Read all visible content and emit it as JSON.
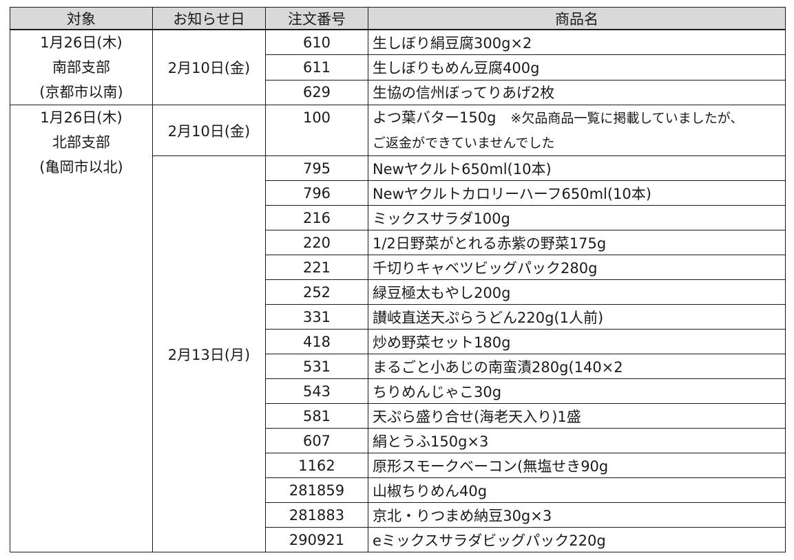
{
  "headers": {
    "target": "対象",
    "notice_date": "お知らせ日",
    "order_no": "注文番号",
    "product_name": "商品名"
  },
  "groups": [
    {
      "target": [
        "1月26日(木)",
        "南部支部",
        "(京都市以南)"
      ],
      "notices": [
        {
          "date": "2月10日(金)",
          "items": [
            {
              "order": "610",
              "name": "生しぼり絹豆腐300g×2"
            },
            {
              "order": "611",
              "name": "生しぼりもめん豆腐400g"
            },
            {
              "order": "629",
              "name": "生協の信州ぼってりあげ2枚"
            }
          ]
        }
      ]
    },
    {
      "target": [
        "1月26日(木)",
        "北部支部",
        "(亀岡市以北)"
      ],
      "notices": [
        {
          "date": "2月10日(金)",
          "items": [
            {
              "order": "100",
              "name": "よつ葉バター150g",
              "note": "※欠品商品一覧に掲載していましたが、",
              "note2": "ご返金ができていませんでした"
            }
          ]
        },
        {
          "date": "2月13日(月)",
          "items": [
            {
              "order": "795",
              "name": "Newヤクルト650ml(10本)"
            },
            {
              "order": "796",
              "name": "Newヤクルトカロリーハーフ650ml(10本)"
            },
            {
              "order": "216",
              "name": "ミックスサラダ100g"
            },
            {
              "order": "220",
              "name": "1/2日野菜がとれる赤紫の野菜175g"
            },
            {
              "order": "221",
              "name": "千切りキャベツビッグパック280g"
            },
            {
              "order": "252",
              "name": "緑豆極太もやし200g"
            },
            {
              "order": "331",
              "name": "讃岐直送天ぷらうどん220g(1人前)"
            },
            {
              "order": "418",
              "name": "炒め野菜セット180g"
            },
            {
              "order": "531",
              "name": "まるごと小あじの南蛮漬280g(140×2"
            },
            {
              "order": "543",
              "name": "ちりめんじゃこ30g"
            },
            {
              "order": "581",
              "name": "天ぷら盛り合せ(海老天入り)1盛"
            },
            {
              "order": "607",
              "name": "絹とうふ150g×3"
            },
            {
              "order": "1162",
              "name": "原形スモークベーコン(無塩せき90g"
            },
            {
              "order": "281859",
              "name": "山椒ちりめん40g"
            },
            {
              "order": "281883",
              "name": "京北・りつまめ納豆30g×3"
            },
            {
              "order": "290921",
              "name": "eミックスサラダビッグパック220g"
            }
          ]
        }
      ]
    }
  ]
}
